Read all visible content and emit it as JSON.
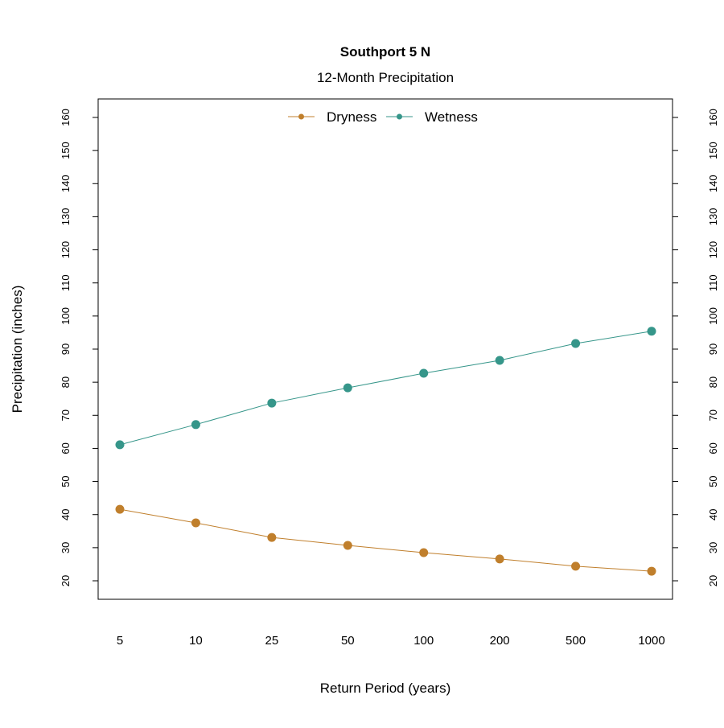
{
  "chart_data": {
    "type": "line",
    "title": "Southport 5 N",
    "subtitle": "12-Month Precipitation",
    "xlabel": "Return Period (years)",
    "ylabel": "Precipitation (inches)",
    "categories": [
      "5",
      "10",
      "25",
      "50",
      "100",
      "200",
      "500",
      "1000"
    ],
    "ylim": [
      15,
      162
    ],
    "yticks": [
      20,
      30,
      40,
      50,
      60,
      70,
      80,
      90,
      100,
      110,
      120,
      130,
      140,
      150,
      160
    ],
    "right_axis": true,
    "grid": false,
    "legend_position": "top",
    "series": [
      {
        "name": "Dryness",
        "color": "#C07F2C",
        "values": [
          41.6,
          37.5,
          33.1,
          30.7,
          28.5,
          26.6,
          24.4,
          22.9
        ]
      },
      {
        "name": "Wetness",
        "color": "#36968A",
        "values": [
          61.1,
          67.2,
          73.7,
          78.3,
          82.7,
          86.6,
          91.7,
          95.4
        ]
      }
    ]
  }
}
